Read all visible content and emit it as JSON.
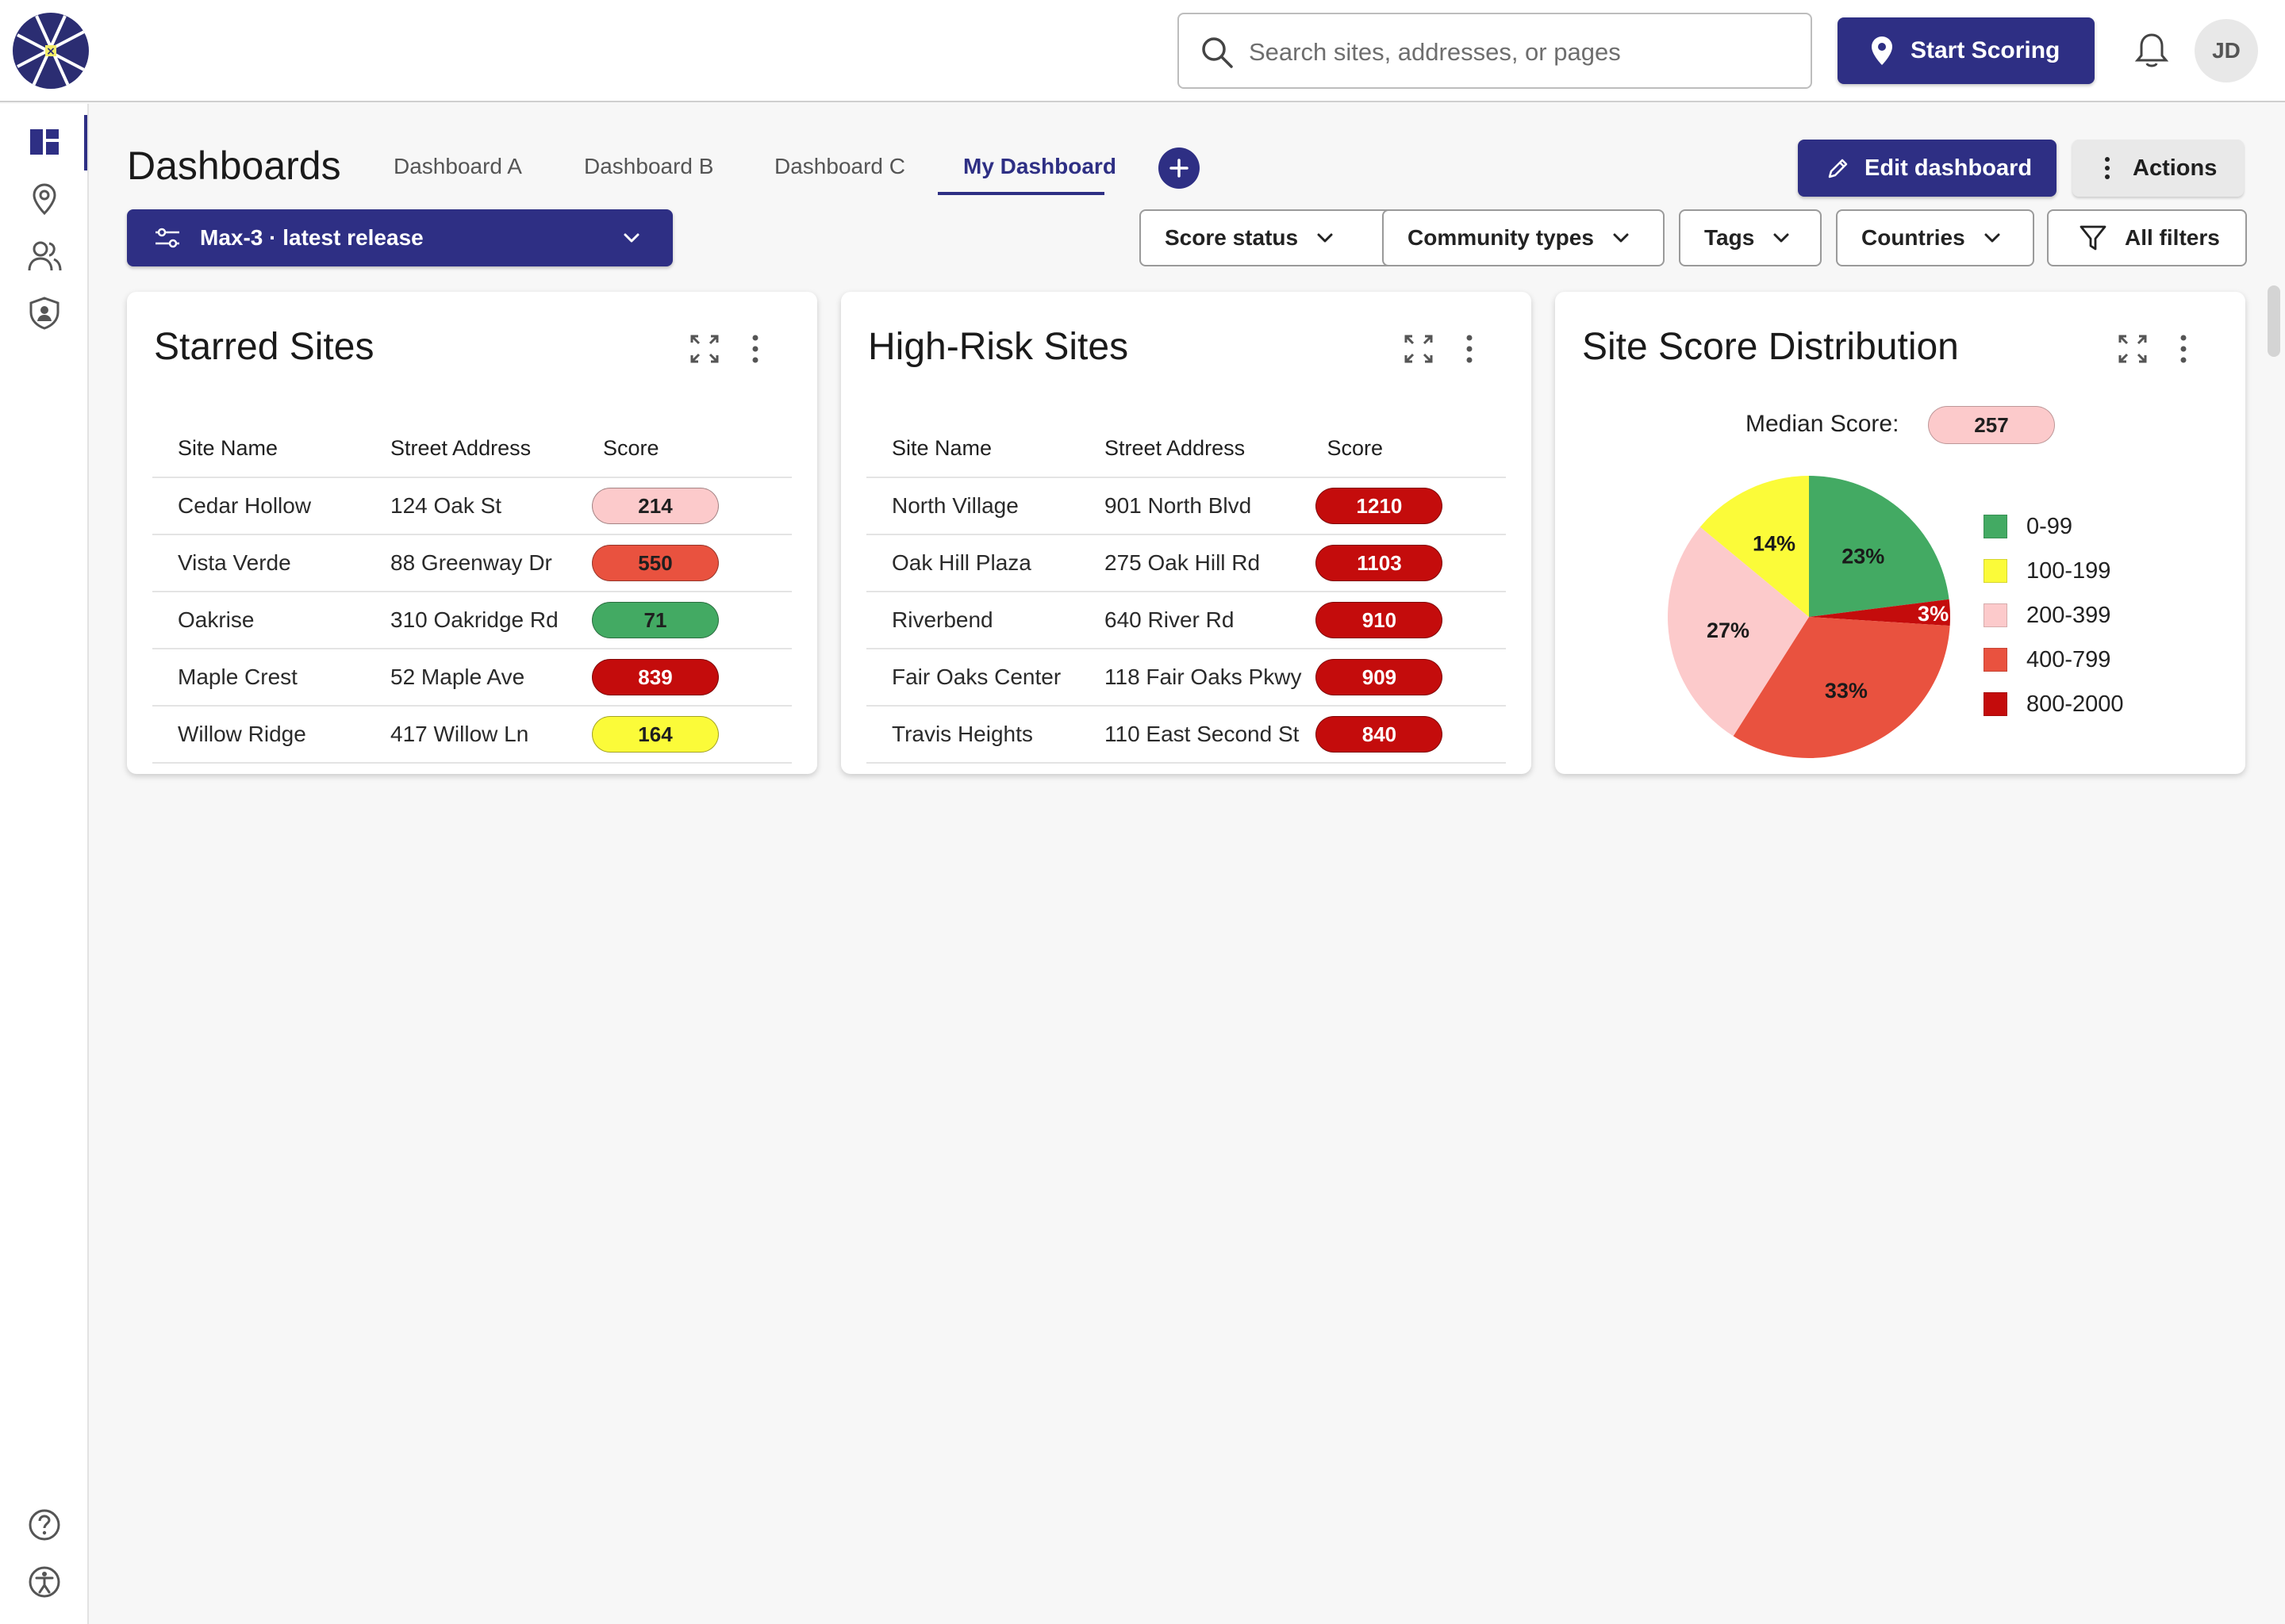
{
  "search": {
    "placeholder": "Search sites, addresses, or pages"
  },
  "header": {
    "start_scoring": "Start Scoring",
    "user_initials": "JD"
  },
  "page": {
    "title": "Dashboards",
    "tabs": [
      {
        "label": "Dashboard A"
      },
      {
        "label": "Dashboard B"
      },
      {
        "label": "Dashboard C"
      },
      {
        "label": "My Dashboard"
      }
    ],
    "edit_dashboard": "Edit dashboard",
    "actions": "Actions",
    "release": "Max-3 · latest release",
    "filters": [
      "Score status",
      "Community types",
      "Tags",
      "Countries"
    ],
    "all_filters": "All filters"
  },
  "starred": {
    "title": "Starred Sites",
    "columns": [
      "Site Name",
      "Street Address",
      "Score"
    ],
    "rows": [
      {
        "name": "Cedar Hollow",
        "address": "124 Oak St",
        "score": "214",
        "color": "#fccacb",
        "text": "#1f1f1f"
      },
      {
        "name": "Vista Verde",
        "address": "88 Greenway Dr",
        "score": "550",
        "color": "#e9523f",
        "text": "#1f1f1f"
      },
      {
        "name": "Oakrise",
        "address": "310 Oakridge Rd",
        "score": "71",
        "color": "#43aa63",
        "text": "#1f1f1f"
      },
      {
        "name": "Maple Crest",
        "address": "52 Maple Ave",
        "score": "839",
        "color": "#c40c0c",
        "text": "#ffffff"
      },
      {
        "name": "Willow Ridge",
        "address": "417 Willow Ln",
        "score": "164",
        "color": "#fbfb39",
        "text": "#1f1f1f"
      }
    ]
  },
  "highrisk": {
    "title": "High-Risk Sites",
    "columns": [
      "Site Name",
      "Street Address",
      "Score"
    ],
    "rows": [
      {
        "name": "North Village",
        "address": "901 North Blvd",
        "score": "1210",
        "color": "#c40c0c",
        "text": "#ffffff"
      },
      {
        "name": "Oak Hill Plaza",
        "address": "275 Oak Hill Rd",
        "score": "1103",
        "color": "#c40c0c",
        "text": "#ffffff"
      },
      {
        "name": "Riverbend",
        "address": "640 River Rd",
        "score": "910",
        "color": "#c40c0c",
        "text": "#ffffff"
      },
      {
        "name": "Fair Oaks Center",
        "address": "118 Fair Oaks Pkwy",
        "score": "909",
        "color": "#c40c0c",
        "text": "#ffffff"
      },
      {
        "name": "Travis Heights",
        "address": "110 East Second St",
        "score": "840",
        "color": "#c40c0c",
        "text": "#ffffff"
      }
    ]
  },
  "distribution": {
    "title": "Site Score Distribution",
    "median_label": "Median Score:",
    "median_value": "257"
  },
  "chart_data": {
    "type": "pie",
    "title": "",
    "slices": [
      {
        "label": "0-99",
        "value": 23,
        "display": "23%",
        "color": "#43aa63"
      },
      {
        "label": "800-2000",
        "value": 3,
        "display": "3%",
        "color": "#c40c0c"
      },
      {
        "label": "400-799",
        "value": 33,
        "display": "33%",
        "color": "#e9523f"
      },
      {
        "label": "200-399",
        "value": 27,
        "display": "27%",
        "color": "#fccacb"
      },
      {
        "label": "100-199",
        "value": 14,
        "display": "14%",
        "color": "#fbfb39"
      }
    ],
    "legend": [
      "0-99",
      "100-199",
      "200-399",
      "400-799",
      "800-2000"
    ],
    "legend_placement": "right"
  }
}
